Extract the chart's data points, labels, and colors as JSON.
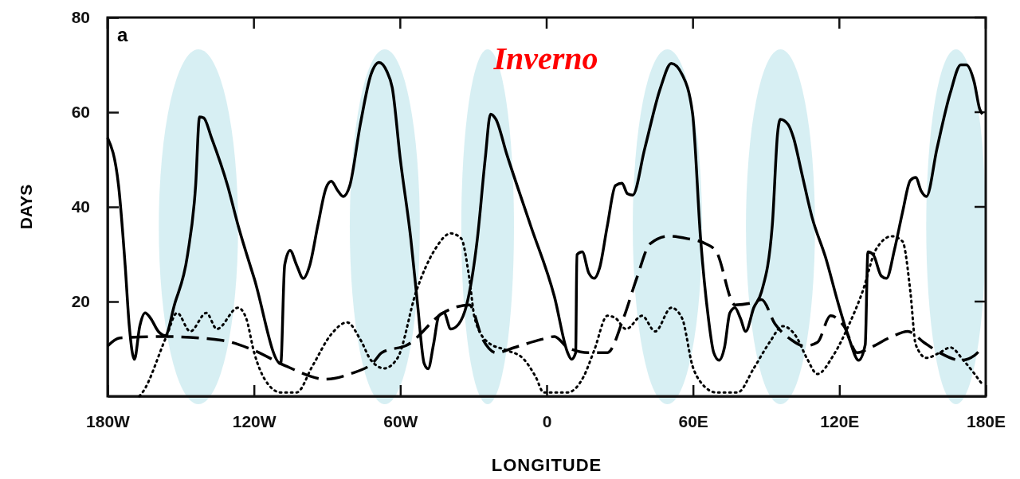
{
  "chart_data": {
    "type": "line",
    "xlabel": "LONGITUDE",
    "ylabel": "DAYS",
    "annotations": [
      "a",
      "Inverno"
    ],
    "xlim": [
      -180,
      180
    ],
    "ylim": [
      0,
      80
    ],
    "xticks": [
      {
        "value": -180,
        "label": "180W"
      },
      {
        "value": -120,
        "label": "120W"
      },
      {
        "value": -60,
        "label": "60W"
      },
      0,
      {
        "value": 60,
        "label": "60E"
      },
      {
        "value": 120,
        "label": "120E"
      },
      {
        "value": 180,
        "label": "180E"
      }
    ],
    "yticks": [
      20,
      40,
      60,
      80
    ],
    "bands": [
      {
        "axis": "x",
        "from": -159,
        "to": -126.5,
        "color": "#d3edf2"
      },
      {
        "axis": "x",
        "from": -80.7,
        "to": -52,
        "color": "#d3edf2"
      },
      {
        "axis": "x",
        "from": -35,
        "to": -13.4,
        "color": "#d3edf2"
      },
      {
        "axis": "x",
        "from": 35.3,
        "to": 63.7,
        "color": "#d3edf2"
      },
      {
        "axis": "x",
        "from": 81.7,
        "to": 110,
        "color": "#d3edf2"
      },
      {
        "axis": "x",
        "from": 155.6,
        "to": 180,
        "color": "#d3edf2"
      }
    ],
    "series": [
      {
        "color": "#000000",
        "line_style": "solid",
        "x": [
          -180,
          -175.5,
          -172.8,
          -171.1,
          -169,
          -166.8,
          -164.6,
          -162.4,
          -159.2,
          -156.4,
          -152.6,
          -147.2,
          -143.9,
          -142.3,
          -140.6,
          -137.4,
          -130.8,
          -126.5,
          -119.9,
          -109,
          -107.4,
          -105.2,
          -102.5,
          -99.8,
          -97.1,
          -93.8,
          -90.5,
          -88.3,
          -85.6,
          -83.4,
          -80.7,
          -76.4,
          -72,
          -68.7,
          -65.5,
          -63.3,
          -60,
          -55.7,
          -52.9,
          -50.2,
          -48.6,
          -46.4,
          -44.2,
          -42.1,
          -39.3,
          -36,
          -32.8,
          -28.4,
          -25.2,
          -23,
          -20.8,
          -16.4,
          -6.6,
          3.2,
          8.6,
          10.2,
          11.9,
          12.4,
          14.6,
          17.3,
          19.5,
          21.7,
          24.9,
          28.2,
          30.9,
          33.1,
          35.3,
          40.2,
          46.7,
          51.1,
          55.5,
          59.8,
          63.1,
          66.3,
          68.5,
          70.7,
          72.9,
          75.1,
          77.2,
          79.4,
          81.6,
          84.9,
          88.1,
          92.5,
          94.7,
          95.8,
          99,
          101.2,
          104.5,
          108.8,
          114.3,
          119.7,
          124.1,
          127.9,
          130.6,
          131.7,
          133.9,
          137.2,
          139.3,
          142.6,
          145.9,
          149.1,
          151.3,
          153.5,
          155.7,
          160,
          165.5,
          169.8,
          172,
          175.3,
          177.5,
          178.6
        ],
        "values": [
          54.6,
          44.5,
          27.7,
          14.8,
          7.8,
          14.8,
          17.6,
          16.5,
          13.7,
          12.8,
          19.3,
          29.9,
          44.5,
          59,
          58.8,
          54.6,
          44.5,
          36.1,
          24.9,
          6.9,
          27.7,
          30.8,
          27.7,
          24.9,
          27.7,
          36.1,
          43.9,
          45.4,
          43.4,
          42.2,
          44.5,
          57.4,
          68,
          70.5,
          68.6,
          65.2,
          50.1,
          33.3,
          19.3,
          6.9,
          5.8,
          10.9,
          17,
          17.6,
          14.2,
          15.3,
          19.3,
          33.3,
          50.1,
          59.6,
          58.5,
          51.2,
          36.1,
          21,
          9.2,
          7.8,
          9.2,
          29.9,
          30.5,
          26,
          24.9,
          27.1,
          36.1,
          44.5,
          45,
          42.8,
          42.5,
          52.3,
          65.2,
          70.3,
          68,
          59.8,
          33.3,
          16.5,
          9.2,
          7.6,
          10.3,
          17.6,
          18.7,
          16.5,
          13.7,
          18.7,
          22.1,
          36.1,
          55.7,
          58.5,
          57.4,
          54.6,
          47.3,
          37.8,
          29.4,
          19.3,
          12,
          7.6,
          10.9,
          30.5,
          29.9,
          25.4,
          24.9,
          31,
          38.9,
          45.6,
          46.2,
          43.4,
          42.2,
          52.3,
          64.1,
          70,
          70,
          66.3,
          60.7,
          59.6
        ]
      },
      {
        "color": "#000000",
        "line_style": "dashed",
        "x": [
          -180,
          -175,
          -156,
          -133,
          -120,
          -107,
          -90.5,
          -80.7,
          -71,
          -67.6,
          -56.9,
          -42.5,
          -31.7,
          -26.2,
          -20.8,
          -13.2,
          -2.3,
          3.2,
          8.6,
          17.3,
          24.9,
          31.5,
          36.9,
          42.4,
          50,
          57.6,
          65.3,
          69.6,
          77.2,
          84.9,
          88.1,
          93.6,
          100.1,
          105.6,
          111,
          116.4,
          121.9,
          127.3,
          132.8,
          141.5,
          148,
          154.6,
          161.1,
          169.8,
          175.3,
          178.6
        ],
        "values": [
          10.6,
          12.3,
          12.6,
          11.8,
          9.7,
          6.4,
          3.6,
          4.7,
          7.2,
          9.2,
          10.9,
          17.6,
          19.3,
          12,
          9.2,
          10.3,
          12,
          12.6,
          10.3,
          9.2,
          9.2,
          16.5,
          24.9,
          32.2,
          33.8,
          33.3,
          32.2,
          30.5,
          19.3,
          19.8,
          20.4,
          15.3,
          12,
          10.6,
          11.4,
          17,
          14.8,
          9.2,
          10.3,
          12.6,
          13.7,
          11.4,
          9.2,
          7.6,
          8.6,
          10.3
        ]
      },
      {
        "color": "#000000",
        "line_style": "dotted",
        "x": [
          -167,
          -165.7,
          -155.9,
          -151.5,
          -146.1,
          -139.5,
          -135.2,
          -126.5,
          -123.2,
          -119.9,
          -115.6,
          -109,
          -102.5,
          -96,
          -88.3,
          -81.8,
          -76.4,
          -72,
          -66.6,
          -61.1,
          -53.5,
          -45.8,
          -39.3,
          -35,
          -31.7,
          -29.5,
          -24.1,
          -16.4,
          -9.9,
          -4.5,
          -1.2,
          8.6,
          15.1,
          19.5,
          24.9,
          28.2,
          32.6,
          39.1,
          44.5,
          51.1,
          55.5,
          59.8,
          63.1,
          69.6,
          78.3,
          84.9,
          91.4,
          96.8,
          102.3,
          106.6,
          111,
          117.5,
          124.1,
          129.5,
          135,
          141.5,
          145.9,
          149.1,
          151.3,
          155.7,
          161.1,
          165.5,
          171,
          178.6
        ],
        "values": [
          0,
          0.8,
          12.6,
          17.6,
          13.7,
          17.6,
          14.2,
          18.7,
          16.5,
          9.2,
          3.6,
          0.8,
          0.8,
          6.4,
          13.1,
          15.6,
          12,
          7.6,
          5.9,
          8.1,
          22.1,
          31,
          34.4,
          33.3,
          24.9,
          16.5,
          11.4,
          9.7,
          8.1,
          4.1,
          0.8,
          0.8,
          4.1,
          9.7,
          17,
          16.5,
          14.2,
          17,
          13.7,
          18.7,
          16.5,
          6.4,
          3,
          0.8,
          0.8,
          5.9,
          11.4,
          14.8,
          12.6,
          8.1,
          4.7,
          8.6,
          15.3,
          22.1,
          31,
          33.8,
          32.7,
          22.1,
          10.9,
          8.1,
          9.2,
          10.3,
          7.5,
          2.5
        ]
      }
    ]
  }
}
